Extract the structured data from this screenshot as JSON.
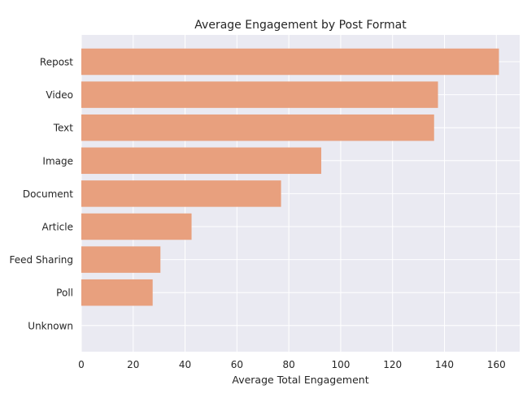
{
  "chart_data": {
    "type": "bar",
    "orientation": "horizontal",
    "title": "Average Engagement by Post Format",
    "xlabel": "Average Total Engagement",
    "ylabel": "",
    "categories": [
      "Repost",
      "Video",
      "Text",
      "Image",
      "Document",
      "Article",
      "Feed Sharing",
      "Poll",
      "Unknown"
    ],
    "values": [
      161,
      137.5,
      136,
      92.5,
      77,
      42.5,
      30.5,
      27.5,
      0
    ],
    "xlim": [
      0,
      169
    ],
    "xticks": [
      0,
      20,
      40,
      60,
      80,
      100,
      120,
      140,
      160
    ],
    "grid": true,
    "style": {
      "bar_color": "#E8A07E",
      "background_color": "#EAEAF2",
      "grid_color": "#FFFFFF"
    }
  }
}
